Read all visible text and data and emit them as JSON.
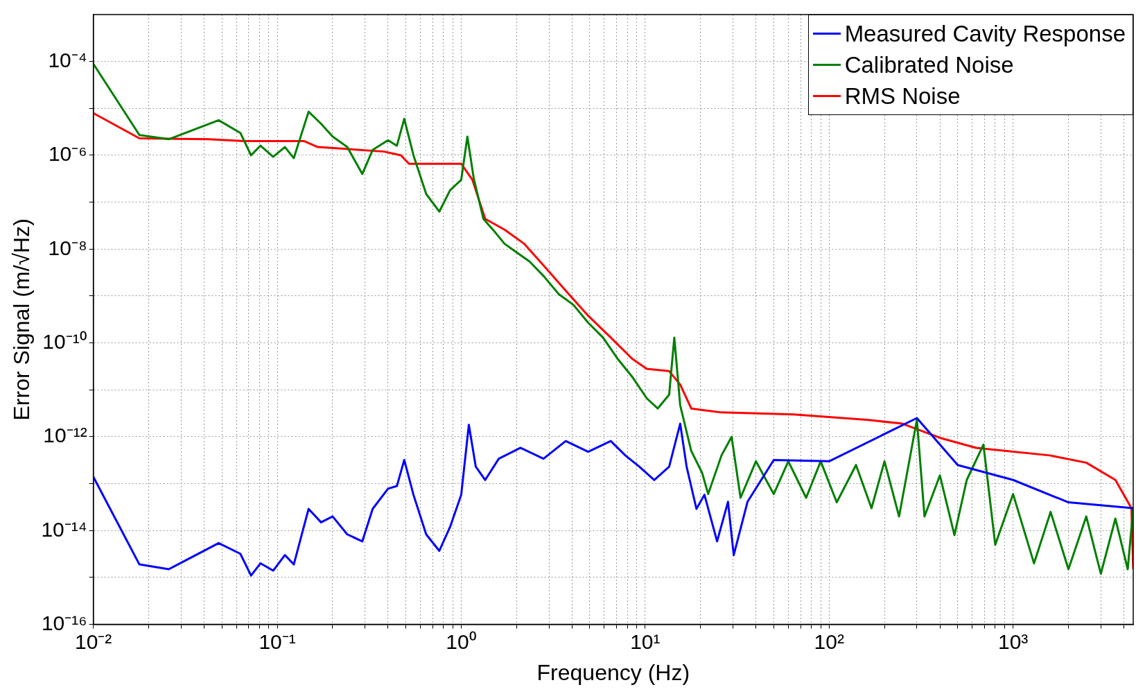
{
  "chart_data": {
    "type": "line",
    "xlabel": "Frequency (Hz)",
    "ylabel": "Error Signal (m/√Hz)",
    "log": "xy",
    "grid": true,
    "legend": "top right",
    "marker": "none",
    "line_style": "solid",
    "xlim": [
      0.01,
      4500
    ],
    "ylim": [
      1e-16,
      0.001
    ],
    "xticks": [
      {
        "value": 0.01,
        "label": "10⁻²"
      },
      {
        "value": 0.02,
        "label": null
      },
      {
        "value": 0.03,
        "label": null
      },
      {
        "value": 0.04,
        "label": null
      },
      {
        "value": 0.05,
        "label": null
      },
      {
        "value": 0.06,
        "label": null
      },
      {
        "value": 0.07,
        "label": null
      },
      {
        "value": 0.08,
        "label": null
      },
      {
        "value": 0.09,
        "label": null
      },
      {
        "value": 0.1,
        "label": "10⁻¹"
      },
      {
        "value": 0.2,
        "label": null
      },
      {
        "value": 0.3,
        "label": null
      },
      {
        "value": 0.4,
        "label": null
      },
      {
        "value": 0.5,
        "label": null
      },
      {
        "value": 0.6,
        "label": null
      },
      {
        "value": 0.7,
        "label": null
      },
      {
        "value": 0.8,
        "label": null
      },
      {
        "value": 0.9,
        "label": null
      },
      {
        "value": 1,
        "label": "10⁰"
      },
      {
        "value": 2,
        "label": null
      },
      {
        "value": 3,
        "label": null
      },
      {
        "value": 4,
        "label": null
      },
      {
        "value": 5,
        "label": null
      },
      {
        "value": 6,
        "label": null
      },
      {
        "value": 7,
        "label": null
      },
      {
        "value": 8,
        "label": null
      },
      {
        "value": 9,
        "label": null
      },
      {
        "value": 10,
        "label": "10¹"
      },
      {
        "value": 20,
        "label": null
      },
      {
        "value": 30,
        "label": null
      },
      {
        "value": 40,
        "label": null
      },
      {
        "value": 50,
        "label": null
      },
      {
        "value": 60,
        "label": null
      },
      {
        "value": 70,
        "label": null
      },
      {
        "value": 80,
        "label": null
      },
      {
        "value": 90,
        "label": null
      },
      {
        "value": 100,
        "label": "10²"
      },
      {
        "value": 200,
        "label": null
      },
      {
        "value": 300,
        "label": null
      },
      {
        "value": 400,
        "label": null
      },
      {
        "value": 500,
        "label": null
      },
      {
        "value": 600,
        "label": null
      },
      {
        "value": 700,
        "label": null
      },
      {
        "value": 800,
        "label": null
      },
      {
        "value": 900,
        "label": null
      },
      {
        "value": 1000,
        "label": "10³"
      },
      {
        "value": 2000,
        "label": null
      },
      {
        "value": 3000,
        "label": null
      },
      {
        "value": 4000,
        "label": null
      }
    ],
    "yticks": [
      {
        "value": 1e-16,
        "label": "10⁻¹⁶"
      },
      {
        "value": 1e-15,
        "label": null
      },
      {
        "value": 1e-14,
        "label": "10⁻¹⁴"
      },
      {
        "value": 1e-13,
        "label": null
      },
      {
        "value": 1e-12,
        "label": "10⁻¹²"
      },
      {
        "value": 1e-11,
        "label": null
      },
      {
        "value": 1e-10,
        "label": "10⁻¹⁰"
      },
      {
        "value": 1e-09,
        "label": null
      },
      {
        "value": 1e-08,
        "label": "10⁻⁸"
      },
      {
        "value": 1e-07,
        "label": null
      },
      {
        "value": 1e-06,
        "label": "10⁻⁶"
      },
      {
        "value": 1e-05,
        "label": null
      },
      {
        "value": 0.0001,
        "label": "10⁻⁴"
      }
    ],
    "series": [
      {
        "name": "Measured Cavity Response",
        "color": "#0000ff",
        "x": [
          0.01,
          0.0178,
          0.0257,
          0.048,
          0.063,
          0.072,
          0.081,
          0.095,
          0.11,
          0.123,
          0.148,
          0.173,
          0.2,
          0.24,
          0.29,
          0.33,
          0.4,
          0.447,
          0.49,
          0.55,
          0.645,
          0.76,
          0.87,
          1.0,
          1.1,
          1.2,
          1.35,
          1.6,
          2.1,
          2.8,
          3.7,
          4.9,
          6.5,
          7.8,
          9.3,
          11.2,
          13.5,
          15.5,
          16.8,
          19,
          21,
          24.6,
          28.2,
          30.3,
          36,
          50,
          100,
          300,
          500,
          1000,
          2000,
          4500
        ],
        "values": [
          1.4e-13,
          1.9e-15,
          1.5e-15,
          5.4e-15,
          3.2e-15,
          1.1e-15,
          2e-15,
          1.4e-15,
          3e-15,
          1.9e-15,
          2.9e-14,
          1.5e-14,
          2e-14,
          8.3e-15,
          5.9e-15,
          2.9e-14,
          7.8e-14,
          8.9e-14,
          3.2e-13,
          5.8e-14,
          8.3e-15,
          3.7e-15,
          1.2e-14,
          5.8e-14,
          1.8e-12,
          2.3e-13,
          1.2e-13,
          3.4e-13,
          5.8e-13,
          3.4e-13,
          8.1e-13,
          4.8e-13,
          8.1e-13,
          4e-13,
          2.3e-13,
          1.2e-13,
          2.3e-13,
          1.9e-12,
          2.3e-13,
          2.9e-14,
          5.8e-14,
          5.9e-15,
          4.1e-14,
          3e-15,
          4.1e-14,
          3.2e-13,
          3e-13,
          2.5e-12,
          2.5e-13,
          1.2e-13,
          4e-14,
          3e-14
        ]
      },
      {
        "name": "Calibrated Noise",
        "color": "#007f00",
        "x": [
          0.01,
          0.0178,
          0.0257,
          0.048,
          0.063,
          0.072,
          0.081,
          0.095,
          0.11,
          0.123,
          0.148,
          0.173,
          0.2,
          0.24,
          0.29,
          0.33,
          0.4,
          0.447,
          0.49,
          0.55,
          0.645,
          0.76,
          0.87,
          1.0,
          1.08,
          1.17,
          1.32,
          1.5,
          1.72,
          1.97,
          2.36,
          2.82,
          3.39,
          4.07,
          4.9,
          5.9,
          7.08,
          8.5,
          10.2,
          11.7,
          13.5,
          14.4,
          15.5,
          17.8,
          20.4,
          22,
          26,
          29.5,
          33,
          40,
          50,
          60,
          75,
          90,
          110,
          140,
          170,
          200,
          240,
          300,
          330,
          400,
          480,
          560,
          690,
          800,
          1000,
          1300,
          1600,
          2000,
          2500,
          3000,
          3600,
          4200,
          4500
        ],
        "values": [
          8.9e-05,
          2.7e-06,
          2.2e-06,
          5.6e-06,
          3e-06,
          1e-06,
          1.6e-06,
          9.3e-07,
          1.5e-06,
          8.7e-07,
          8.5e-06,
          4.7e-06,
          2.5e-06,
          1.5e-06,
          4e-07,
          1.3e-06,
          2.1e-06,
          1.6e-06,
          6e-06,
          1e-06,
          1.5e-07,
          6.3e-08,
          1.8e-07,
          3e-07,
          2.5e-06,
          3.2e-07,
          4.4e-08,
          2.5e-08,
          1.3e-08,
          8.9e-09,
          5.4e-09,
          2.6e-09,
          1.1e-09,
          6.5e-10,
          2.7e-10,
          1.3e-10,
          4.6e-11,
          1.9e-11,
          6.6e-12,
          4e-12,
          7.9e-12,
          1.3e-10,
          4.7e-12,
          5e-13,
          1.7e-13,
          6e-14,
          4e-13,
          1e-12,
          5e-14,
          3e-13,
          6e-14,
          3e-13,
          5e-14,
          3e-13,
          4e-14,
          2.5e-13,
          3e-14,
          3e-13,
          2e-14,
          2.3e-12,
          2e-14,
          1.5e-13,
          8e-15,
          1.2e-13,
          6.8e-13,
          5e-15,
          6e-14,
          2e-15,
          2.5e-14,
          1.5e-15,
          2e-14,
          1.2e-15,
          1.8e-14,
          1.5e-15,
          3e-14
        ]
      },
      {
        "name": "RMS Noise",
        "color": "#ff0000",
        "x": [
          0.01,
          0.0178,
          0.042,
          0.066,
          0.14,
          0.166,
          0.38,
          0.47,
          0.52,
          1.0,
          1.15,
          1.35,
          1.72,
          2.2,
          2.8,
          3.7,
          4.9,
          6.5,
          8.5,
          10.2,
          13.5,
          15.5,
          17.8,
          26,
          64,
          160,
          250,
          400,
          630,
          1585,
          2500,
          3600,
          4400,
          4500
        ],
        "values": [
          7.9e-06,
          2.3e-06,
          2.2e-06,
          2e-06,
          2e-06,
          1.5e-06,
          1.2e-06,
          1e-06,
          6.6e-07,
          6.6e-07,
          3e-07,
          4.4e-08,
          2.6e-08,
          1.3e-08,
          4.5e-09,
          1.3e-09,
          3.8e-10,
          1.3e-10,
          4.6e-11,
          2.8e-11,
          2.5e-11,
          1.3e-11,
          4e-12,
          3.3e-12,
          3e-12,
          2.3e-12,
          1.9e-12,
          9.5e-13,
          5.8e-13,
          4e-13,
          2.8e-13,
          1.2e-13,
          3e-14,
          1.5e-15
        ]
      }
    ]
  }
}
